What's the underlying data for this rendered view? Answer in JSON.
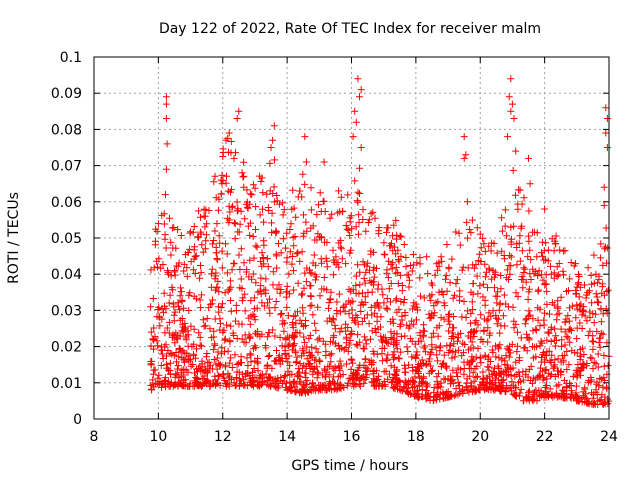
{
  "chart_data": {
    "type": "scatter",
    "title": "Day 122 of 2022, Rate Of TEC Index for receiver malm",
    "xlabel": "GPS time / hours",
    "ylabel": "ROTI / TECUs",
    "xlim": [
      8,
      24
    ],
    "ylim": [
      0,
      0.1
    ],
    "xticks": [
      8,
      10,
      12,
      14,
      16,
      18,
      20,
      22,
      24
    ],
    "xtick_labels": [
      "8",
      "10",
      "12",
      "14",
      "16",
      "18",
      "20",
      "22",
      "24"
    ],
    "yticks": [
      0,
      0.01,
      0.02,
      0.03,
      0.04,
      0.05,
      0.06,
      0.07,
      0.08,
      0.09,
      0.1
    ],
    "ytick_labels": [
      "0",
      "0.01",
      "0.02",
      "0.03",
      "0.04",
      "0.05",
      "0.06",
      "0.07",
      "0.08",
      "0.09",
      "0.1"
    ],
    "grid": true,
    "marker": "+",
    "color": "#ff0000",
    "envelope": {
      "x": [
        9.75,
        10.0,
        10.25,
        10.5,
        11.0,
        11.5,
        12.0,
        12.25,
        12.5,
        13.0,
        13.5,
        14.0,
        14.5,
        15.0,
        15.5,
        16.0,
        16.25,
        16.5,
        17.0,
        17.5,
        18.0,
        18.5,
        19.0,
        19.5,
        20.0,
        20.5,
        21.0,
        21.5,
        22.0,
        22.5,
        23.0,
        23.5,
        24.0
      ],
      "y_max": [
        0.05,
        0.055,
        0.06,
        0.055,
        0.055,
        0.06,
        0.075,
        0.08,
        0.075,
        0.065,
        0.075,
        0.06,
        0.07,
        0.065,
        0.06,
        0.065,
        0.07,
        0.06,
        0.055,
        0.055,
        0.045,
        0.045,
        0.05,
        0.055,
        0.055,
        0.05,
        0.07,
        0.06,
        0.055,
        0.05,
        0.045,
        0.045,
        0.06
      ],
      "y_min": [
        0.008,
        0.008,
        0.009,
        0.009,
        0.009,
        0.009,
        0.009,
        0.009,
        0.009,
        0.009,
        0.009,
        0.008,
        0.007,
        0.008,
        0.008,
        0.009,
        0.009,
        0.009,
        0.009,
        0.008,
        0.006,
        0.005,
        0.006,
        0.007,
        0.008,
        0.008,
        0.007,
        0.004,
        0.006,
        0.006,
        0.005,
        0.004,
        0.004
      ]
    },
    "spikes": [
      {
        "x": 10.25,
        "y": 0.089
      },
      {
        "x": 10.25,
        "y": 0.087
      },
      {
        "x": 10.25,
        "y": 0.083
      },
      {
        "x": 10.27,
        "y": 0.076
      },
      {
        "x": 10.25,
        "y": 0.069
      },
      {
        "x": 10.22,
        "y": 0.062
      },
      {
        "x": 12.1,
        "y": 0.077
      },
      {
        "x": 12.2,
        "y": 0.079
      },
      {
        "x": 12.5,
        "y": 0.085
      },
      {
        "x": 12.45,
        "y": 0.083
      },
      {
        "x": 12.35,
        "y": 0.072
      },
      {
        "x": 12.6,
        "y": 0.068
      },
      {
        "x": 13.6,
        "y": 0.081
      },
      {
        "x": 13.55,
        "y": 0.077
      },
      {
        "x": 13.5,
        "y": 0.075
      },
      {
        "x": 14.55,
        "y": 0.078
      },
      {
        "x": 14.6,
        "y": 0.071
      },
      {
        "x": 15.15,
        "y": 0.071
      },
      {
        "x": 16.2,
        "y": 0.094
      },
      {
        "x": 16.3,
        "y": 0.091
      },
      {
        "x": 16.25,
        "y": 0.089
      },
      {
        "x": 16.1,
        "y": 0.085
      },
      {
        "x": 16.15,
        "y": 0.082
      },
      {
        "x": 16.05,
        "y": 0.078
      },
      {
        "x": 16.3,
        "y": 0.075
      },
      {
        "x": 19.5,
        "y": 0.078
      },
      {
        "x": 19.55,
        "y": 0.073
      },
      {
        "x": 19.5,
        "y": 0.072
      },
      {
        "x": 19.6,
        "y": 0.06
      },
      {
        "x": 20.95,
        "y": 0.094
      },
      {
        "x": 20.9,
        "y": 0.089
      },
      {
        "x": 21.0,
        "y": 0.087
      },
      {
        "x": 20.95,
        "y": 0.085
      },
      {
        "x": 21.05,
        "y": 0.083
      },
      {
        "x": 20.85,
        "y": 0.078
      },
      {
        "x": 21.1,
        "y": 0.074
      },
      {
        "x": 21.5,
        "y": 0.072
      },
      {
        "x": 21.55,
        "y": 0.065
      },
      {
        "x": 23.9,
        "y": 0.086
      },
      {
        "x": 23.95,
        "y": 0.083
      },
      {
        "x": 23.9,
        "y": 0.079
      },
      {
        "x": 23.95,
        "y": 0.075
      },
      {
        "x": 23.85,
        "y": 0.064
      },
      {
        "x": 23.85,
        "y": 0.059
      },
      {
        "x": 22.0,
        "y": 0.058
      },
      {
        "x": 11.95,
        "y": 0.066
      },
      {
        "x": 12.9,
        "y": 0.062
      },
      {
        "x": 15.6,
        "y": 0.063
      }
    ],
    "sample_count": 2600,
    "seed": 122
  }
}
